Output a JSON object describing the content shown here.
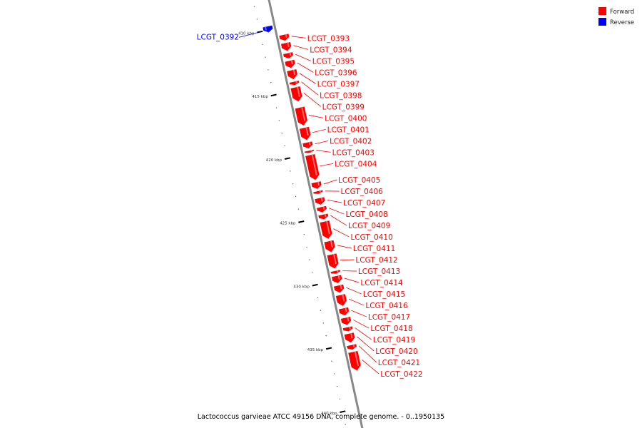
{
  "legend": [
    {
      "label": "Forward",
      "color": "#ff0000"
    },
    {
      "label": "Reverse",
      "color": "#0000ff"
    }
  ],
  "caption": "Lactococcus garvieae ATCC 49156 DNA, complete genome. - 0..1950135",
  "colors": {
    "forward": "#ff0000",
    "reverse": "#0000ff",
    "backbone": "#888888"
  },
  "tick_labels": [
    {
      "kbp": 410,
      "text": "410 kbp"
    },
    {
      "kbp": 415,
      "text": "415 kbp"
    },
    {
      "kbp": 420,
      "text": "420 kbp"
    },
    {
      "kbp": 425,
      "text": "425 kbp"
    },
    {
      "kbp": 430,
      "text": "430 kbp"
    },
    {
      "kbp": 435,
      "text": "435 kbp"
    },
    {
      "kbp": 440,
      "text": "440 kbp"
    }
  ],
  "genes": [
    {
      "name": "LCGT_0392",
      "strand": "reverse",
      "start_kbp": 409.65,
      "end_kbp": 410.25
    },
    {
      "name": "LCGT_0393",
      "strand": "forward",
      "start_kbp": 410.55,
      "end_kbp": 411.15
    },
    {
      "name": "LCGT_0394",
      "strand": "forward",
      "start_kbp": 411.2,
      "end_kbp": 411.95
    },
    {
      "name": "LCGT_0395",
      "strand": "forward",
      "start_kbp": 412.0,
      "end_kbp": 412.55
    },
    {
      "name": "LCGT_0396",
      "strand": "forward",
      "start_kbp": 412.6,
      "end_kbp": 413.3
    },
    {
      "name": "LCGT_0397",
      "strand": "forward",
      "start_kbp": 413.35,
      "end_kbp": 414.2
    },
    {
      "name": "LCGT_0398",
      "strand": "forward",
      "start_kbp": 414.25,
      "end_kbp": 414.65
    },
    {
      "name": "LCGT_0399",
      "strand": "forward",
      "start_kbp": 414.7,
      "end_kbp": 415.95
    },
    {
      "name": "LCGT_0400",
      "strand": "forward",
      "start_kbp": 416.3,
      "end_kbp": 417.85
    },
    {
      "name": "LCGT_0401",
      "strand": "forward",
      "start_kbp": 417.9,
      "end_kbp": 419.0
    },
    {
      "name": "LCGT_0402",
      "strand": "forward",
      "start_kbp": 419.05,
      "end_kbp": 419.65
    },
    {
      "name": "LCGT_0403",
      "strand": "forward",
      "start_kbp": 419.7,
      "end_kbp": 420.0
    },
    {
      "name": "LCGT_0404",
      "strand": "forward",
      "start_kbp": 420.05,
      "end_kbp": 422.15
    },
    {
      "name": "LCGT_0405",
      "strand": "forward",
      "start_kbp": 422.2,
      "end_kbp": 422.85
    },
    {
      "name": "LCGT_0406",
      "strand": "forward",
      "start_kbp": 422.9,
      "end_kbp": 423.25
    },
    {
      "name": "LCGT_0407",
      "strand": "forward",
      "start_kbp": 423.45,
      "end_kbp": 424.1
    },
    {
      "name": "LCGT_0408",
      "strand": "forward",
      "start_kbp": 424.15,
      "end_kbp": 424.7
    },
    {
      "name": "LCGT_0409",
      "strand": "forward",
      "start_kbp": 424.75,
      "end_kbp": 425.25
    },
    {
      "name": "LCGT_0410",
      "strand": "forward",
      "start_kbp": 425.3,
      "end_kbp": 426.8
    },
    {
      "name": "LCGT_0411",
      "strand": "forward",
      "start_kbp": 426.85,
      "end_kbp": 427.85
    },
    {
      "name": "LCGT_0412",
      "strand": "forward",
      "start_kbp": 427.9,
      "end_kbp": 429.15
    },
    {
      "name": "LCGT_0413",
      "strand": "forward",
      "start_kbp": 429.2,
      "end_kbp": 429.55
    },
    {
      "name": "LCGT_0414",
      "strand": "forward",
      "start_kbp": 429.6,
      "end_kbp": 430.3
    },
    {
      "name": "LCGT_0415",
      "strand": "forward",
      "start_kbp": 430.35,
      "end_kbp": 431.05
    },
    {
      "name": "LCGT_0416",
      "strand": "forward",
      "start_kbp": 431.1,
      "end_kbp": 432.1
    },
    {
      "name": "LCGT_0417",
      "strand": "forward",
      "start_kbp": 432.15,
      "end_kbp": 432.85
    },
    {
      "name": "LCGT_0418",
      "strand": "forward",
      "start_kbp": 432.9,
      "end_kbp": 433.6
    },
    {
      "name": "LCGT_0419",
      "strand": "forward",
      "start_kbp": 433.65,
      "end_kbp": 434.1
    },
    {
      "name": "LCGT_0420",
      "strand": "forward",
      "start_kbp": 434.15,
      "end_kbp": 435.0
    },
    {
      "name": "LCGT_0421",
      "strand": "forward",
      "start_kbp": 435.05,
      "end_kbp": 435.55
    },
    {
      "name": "LCGT_0422",
      "strand": "forward",
      "start_kbp": 435.6,
      "end_kbp": 437.2
    }
  ]
}
